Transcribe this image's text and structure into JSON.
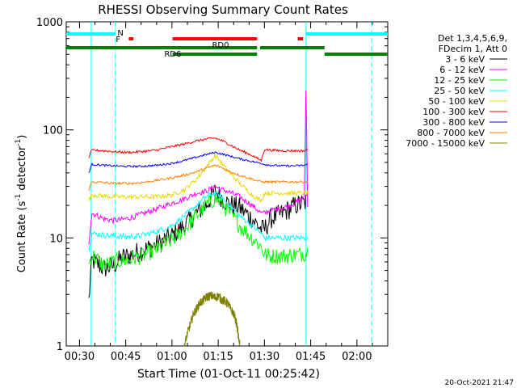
{
  "chart_data": {
    "type": "line",
    "title": "RHESSI Observing Summary Count Rates",
    "xlabel": "Start Time (01-Oct-11 00:25:42)",
    "ylabel": "Count Rate (s⁻¹ detector⁻¹)",
    "ylabel_parts": {
      "main": "Count Rate (s",
      "exp1": "-1",
      "mid": " detector",
      "exp2": "-1",
      "end": ")"
    },
    "x_range_minutes": [
      25.7,
      130.0
    ],
    "y_scale": "log",
    "ylim": [
      1,
      1000
    ],
    "x_ticks": [
      {
        "t": 30,
        "label": "00:30"
      },
      {
        "t": 45,
        "label": "00:45"
      },
      {
        "t": 60,
        "label": "01:00"
      },
      {
        "t": 75,
        "label": "01:15"
      },
      {
        "t": 90,
        "label": "01:30"
      },
      {
        "t": 105,
        "label": "01:45"
      },
      {
        "t": 120,
        "label": "02:00"
      }
    ],
    "y_ticks": [
      {
        "v": 1,
        "label": "1"
      },
      {
        "v": 10,
        "label": "10"
      },
      {
        "v": 100,
        "label": "100"
      },
      {
        "v": 1000,
        "label": "1000"
      }
    ],
    "legend_title": [
      "Det 1,3,4,5,6,9,",
      "FDecim 1, Att 0"
    ],
    "series": [
      {
        "name": "3 - 6 keV",
        "color": "#000000",
        "x": [
          33,
          34,
          38,
          41,
          44,
          47,
          50,
          55,
          60,
          64,
          68,
          71,
          74,
          76,
          78,
          82,
          86,
          89,
          90,
          92,
          96,
          100,
          103,
          104
        ],
        "y": [
          2.6,
          6.2,
          5.2,
          5.5,
          6.6,
          7.0,
          7.6,
          8.6,
          10.5,
          13,
          17,
          20,
          27,
          24,
          21,
          19,
          15,
          12,
          12,
          15,
          17,
          20,
          21,
          22
        ]
      },
      {
        "name": "6 - 12 keV",
        "color": "#ff00ff",
        "x": [
          33,
          34,
          38,
          41,
          44,
          47,
          50,
          55,
          60,
          64,
          68,
          71,
          74,
          76,
          78,
          82,
          86,
          89,
          90,
          92,
          96,
          100,
          103,
          103.5,
          104
        ],
        "y": [
          9,
          17,
          15,
          14.5,
          14.8,
          15.5,
          16.5,
          18.5,
          21,
          23,
          26,
          27,
          30,
          28,
          27,
          24,
          20,
          17,
          17,
          18,
          19,
          21,
          24,
          300,
          20
        ]
      },
      {
        "name": "12 - 25 keV",
        "color": "#00ff00",
        "x": [
          33,
          34,
          38,
          41,
          44,
          47,
          50,
          55,
          60,
          64,
          68,
          71,
          74,
          76,
          78,
          82,
          86,
          89,
          90,
          92,
          96,
          100,
          103,
          104
        ],
        "y": [
          5.5,
          7,
          5.6,
          6.0,
          6.2,
          6.4,
          6.8,
          7.8,
          9.5,
          12,
          16,
          20,
          23,
          21,
          18,
          13,
          10,
          8.3,
          7,
          6.8,
          6.8,
          7,
          7.2,
          7.5
        ]
      },
      {
        "name": "25 - 50 keV",
        "color": "#00ffff",
        "x": [
          33,
          34,
          38,
          41,
          44,
          47,
          50,
          55,
          60,
          64,
          68,
          71,
          74,
          76,
          78,
          82,
          86,
          89,
          90,
          92,
          96,
          100,
          103,
          104
        ],
        "y": [
          8,
          11,
          10.6,
          10.4,
          10.3,
          10.3,
          10.5,
          11.5,
          13,
          16,
          20,
          24,
          26,
          24,
          21,
          16,
          13,
          11,
          10,
          10,
          10,
          10,
          10,
          10
        ]
      },
      {
        "name": "50 - 100 keV",
        "color": "#e8d800",
        "x": [
          33,
          34,
          38,
          41,
          44,
          47,
          50,
          55,
          60,
          64,
          68,
          71,
          74,
          76,
          78,
          82,
          86,
          89,
          90,
          92,
          96,
          100,
          103,
          104
        ],
        "y": [
          22,
          25,
          24.5,
          24,
          24,
          24,
          24,
          24,
          25,
          28,
          35,
          45,
          58,
          50,
          42,
          32,
          25,
          22,
          26,
          26,
          26,
          26,
          26,
          26
        ]
      },
      {
        "name": "100 - 300 keV",
        "color": "#ff0000",
        "x": [
          33,
          34,
          38,
          41,
          44,
          47,
          50,
          55,
          60,
          64,
          68,
          71,
          74,
          76,
          78,
          82,
          86,
          89,
          90,
          92,
          96,
          100,
          103,
          104
        ],
        "y": [
          55,
          65,
          64,
          63,
          62,
          62,
          63,
          65,
          70,
          74,
          79,
          82,
          84,
          80,
          75,
          65,
          58,
          52,
          66,
          65,
          64,
          64,
          64,
          66
        ]
      },
      {
        "name": "300 - 800 keV",
        "color": "#0000ff",
        "x": [
          33,
          34,
          38,
          41,
          44,
          47,
          50,
          55,
          60,
          64,
          68,
          71,
          74,
          76,
          78,
          82,
          86,
          89,
          90,
          92,
          96,
          100,
          103,
          104
        ],
        "y": [
          40,
          48,
          47,
          46.5,
          46,
          46,
          46,
          47,
          49,
          52,
          56,
          59,
          62,
          60,
          58,
          54,
          51,
          49,
          48,
          47,
          46.5,
          46.5,
          47,
          48
        ]
      },
      {
        "name": "800 - 7000 keV",
        "color": "#ff8000",
        "x": [
          33,
          34,
          38,
          41,
          44,
          47,
          50,
          55,
          60,
          64,
          68,
          71,
          74,
          76,
          78,
          82,
          86,
          89,
          90,
          92,
          96,
          100,
          103,
          104
        ],
        "y": [
          28,
          33,
          32.5,
          32,
          32,
          32,
          32.5,
          34,
          36,
          38,
          41,
          44,
          47,
          45,
          42,
          38,
          35,
          33,
          33,
          33,
          33,
          33,
          33,
          33
        ]
      },
      {
        "name": "7000 - 15000 keV",
        "color": "#808000",
        "x": [
          64,
          65,
          66,
          67,
          68,
          69,
          70,
          71,
          72,
          73,
          74,
          75,
          76,
          77,
          78,
          79,
          80,
          81,
          82
        ],
        "y": [
          1,
          1.3,
          1.6,
          2.0,
          2.2,
          2.5,
          2.6,
          2.8,
          2.9,
          2.9,
          2.8,
          2.9,
          2.7,
          2.6,
          2.5,
          2.2,
          2.0,
          1.6,
          1.0
        ]
      }
    ],
    "annotations": {
      "date_stamp": "20-Oct-2021 21:47",
      "night_label": "N",
      "flare_label": "F",
      "rd0_label": "RD0",
      "rd6_label": "RD6"
    },
    "bands": {
      "night": {
        "color": "#00ffff",
        "segments": [
          [
            25.7,
            41.6
          ],
          [
            103.5,
            130.0
          ]
        ]
      },
      "flare": {
        "color": "#ff0000",
        "segments": [
          [
            46.0,
            47.5
          ],
          [
            60.2,
            87.6
          ],
          [
            100.8,
            102.5
          ]
        ]
      },
      "rd0": {
        "color": "#008000",
        "segments": [
          [
            25.7,
            87.6
          ],
          [
            88.6,
            109.5
          ]
        ]
      },
      "rd6": {
        "color": "#008000",
        "segments": [
          [
            60.2,
            87.6
          ],
          [
            109.5,
            130.0
          ]
        ]
      }
    },
    "vertical_lines": [
      {
        "t": 33.8,
        "style": "solid",
        "color": "#00ffff"
      },
      {
        "t": 41.6,
        "style": "dashed",
        "color": "#00ffff"
      },
      {
        "t": 103.5,
        "style": "solid",
        "color": "#00ffff"
      },
      {
        "t": 124.8,
        "style": "dashed",
        "color": "#00ffff"
      }
    ],
    "legend_placement": "right",
    "grid": false
  }
}
